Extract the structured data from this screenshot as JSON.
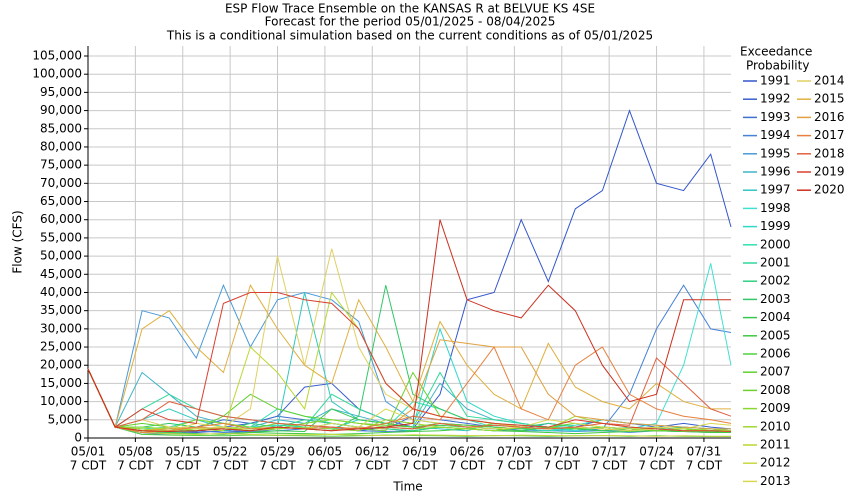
{
  "chart_data": {
    "type": "line",
    "title": "ESP Flow Trace Ensemble on the KANSAS R at BELVUE KS 4SE",
    "subtitle": [
      "Forecast for the period 05/01/2025 - 08/04/2025",
      "This is a conditional simulation based on the current conditions as of 05/01/2025"
    ],
    "x_label": "Time",
    "y_label": "Flow (CFS)",
    "legend_title": [
      "Exceedance",
      "Probability"
    ],
    "grid": true,
    "x": [
      "05/01",
      "05/05",
      "05/09",
      "05/13",
      "05/17",
      "05/21",
      "05/25",
      "05/29",
      "06/02",
      "06/06",
      "06/10",
      "06/14",
      "06/18",
      "06/22",
      "06/26",
      "06/30",
      "07/04",
      "07/08",
      "07/12",
      "07/16",
      "07/20",
      "07/24",
      "07/28",
      "08/01",
      "08/04"
    ],
    "xlim": [
      "05/01",
      "08/04"
    ],
    "xticks": [
      "05/01",
      "05/08",
      "05/15",
      "05/22",
      "05/29",
      "06/05",
      "06/12",
      "06/19",
      "06/26",
      "07/03",
      "07/10",
      "07/17",
      "07/24",
      "07/31"
    ],
    "xtick_sublabel": "7 CDT",
    "ylim": [
      0,
      105000
    ],
    "yticks": [
      0,
      {
        "value": 5000,
        "label": "5,000"
      },
      {
        "value": 10000,
        "label": "10,000"
      },
      {
        "value": 15000,
        "label": "15,000"
      },
      {
        "value": 20000,
        "label": "20,000"
      },
      {
        "value": 25000,
        "label": "25,000"
      },
      {
        "value": 30000,
        "label": "30,000"
      },
      {
        "value": 35000,
        "label": "35,000"
      },
      {
        "value": 40000,
        "label": "40,000"
      },
      {
        "value": 45000,
        "label": "45,000"
      },
      {
        "value": 50000,
        "label": "50,000"
      },
      {
        "value": 55000,
        "label": "55,000"
      },
      {
        "value": 60000,
        "label": "60,000"
      },
      {
        "value": 65000,
        "label": "65,000"
      },
      {
        "value": 70000,
        "label": "70,000"
      },
      {
        "value": 75000,
        "label": "75,000"
      },
      {
        "value": 80000,
        "label": "80,000"
      },
      {
        "value": 85000,
        "label": "85,000"
      },
      {
        "value": 90000,
        "label": "90,000"
      },
      {
        "value": 95000,
        "label": "95,000"
      },
      {
        "value": 100000,
        "label": "100,000"
      },
      {
        "value": 105000,
        "label": "105,000"
      }
    ],
    "series": [
      {
        "name": "1991",
        "color": "#3355cc",
        "values": [
          19000,
          3000,
          1500,
          1200,
          1500,
          2000,
          1800,
          2500,
          3000,
          2500,
          2000,
          3000,
          2500,
          12000,
          38000,
          40000,
          60000,
          43000,
          63000,
          68000,
          90000,
          70000,
          68000,
          78000,
          58000
        ]
      },
      {
        "name": "1992",
        "color": "#3a5fcd",
        "values": [
          19000,
          3000,
          2000,
          1500,
          1800,
          3000,
          4000,
          6000,
          14000,
          15000,
          8000,
          5000,
          3000,
          4000,
          3500,
          3000,
          2500,
          4000,
          3000,
          5000,
          4000,
          3000,
          4000,
          3000,
          2500
        ]
      },
      {
        "name": "1993",
        "color": "#3f6fd0",
        "values": [
          19000,
          3000,
          1000,
          1200,
          3000,
          5000,
          4000,
          6000,
          5000,
          4000,
          3000,
          2500,
          6000,
          5000,
          4000,
          3000,
          2500,
          2000,
          2500,
          3000,
          2500,
          2000,
          3000,
          2500,
          2000
        ]
      },
      {
        "name": "1994",
        "color": "#4682d6",
        "values": [
          19000,
          3000,
          2000,
          1500,
          2000,
          1500,
          1800,
          2000,
          2500,
          3000,
          2000,
          1800,
          2000,
          3000,
          2500,
          2000,
          2500,
          3000,
          2000,
          2500,
          12000,
          30000,
          42000,
          30000,
          29000
        ]
      },
      {
        "name": "1995",
        "color": "#4a9ad8",
        "values": [
          19000,
          3000,
          35000,
          33000,
          22000,
          42000,
          25000,
          38000,
          40000,
          38000,
          32000,
          10000,
          5000,
          4000,
          3000,
          2500,
          2000,
          2000,
          1800,
          2000,
          1500,
          2000,
          1800,
          1500,
          1500
        ]
      },
      {
        "name": "1996",
        "color": "#40b4c8",
        "values": [
          19000,
          3000,
          18000,
          12000,
          6000,
          4000,
          3000,
          5000,
          4000,
          8000,
          6000,
          4000,
          3000,
          15000,
          8000,
          5000,
          4000,
          3000,
          2500,
          2000,
          2000,
          3000,
          2500,
          2000,
          2000
        ]
      },
      {
        "name": "1997",
        "color": "#30c8c0",
        "values": [
          19000,
          3000,
          5000,
          8000,
          5000,
          3000,
          2500,
          3000,
          40000,
          10000,
          5000,
          4000,
          3000,
          2500,
          2000,
          4000,
          3000,
          2500,
          2000,
          3000,
          2500,
          2000,
          2000,
          1800,
          1800
        ]
      },
      {
        "name": "1998",
        "color": "#40e0d0",
        "values": [
          19000,
          3000,
          2000,
          1500,
          2000,
          3000,
          2500,
          3000,
          2500,
          4000,
          3000,
          2500,
          2000,
          3000,
          2500,
          2000,
          3000,
          2500,
          2000,
          3000,
          2500,
          4000,
          20000,
          48000,
          20000
        ]
      },
      {
        "name": "1999",
        "color": "#30d8c8",
        "values": [
          19000,
          3000,
          2500,
          3000,
          5000,
          4000,
          3000,
          3500,
          3000,
          2500,
          5000,
          4000,
          3000,
          30000,
          10000,
          6000,
          4000,
          3000,
          3500,
          5000,
          4000,
          3500,
          3000,
          2500,
          2500
        ]
      },
      {
        "name": "2000",
        "color": "#30e0b0",
        "values": [
          19000,
          3000,
          1500,
          2000,
          2500,
          2000,
          3000,
          8000,
          6000,
          4000,
          3000,
          2500,
          10000,
          8000,
          5000,
          3000,
          2500,
          2000,
          2500,
          3000,
          2500,
          2000,
          2500,
          2000,
          2000
        ]
      },
      {
        "name": "2001",
        "color": "#30d89a",
        "values": [
          19000,
          3000,
          8000,
          12000,
          8000,
          6000,
          5000,
          4000,
          3000,
          12000,
          8000,
          5000,
          4000,
          18000,
          6000,
          5000,
          4000,
          3000,
          2500,
          2000,
          3000,
          2500,
          2000,
          2000,
          1800
        ]
      },
      {
        "name": "2002",
        "color": "#30d080",
        "values": [
          19000,
          3000,
          2000,
          3000,
          2500,
          2000,
          4000,
          3000,
          5000,
          4000,
          3000,
          2500,
          2000,
          3000,
          2500,
          3500,
          3000,
          4000,
          3000,
          2500,
          2000,
          2500,
          3000,
          2500,
          2000
        ]
      },
      {
        "name": "2003",
        "color": "#30c868",
        "values": [
          19000,
          3000,
          3000,
          4000,
          3000,
          2500,
          2000,
          3000,
          2500,
          2000,
          6000,
          42000,
          12000,
          8000,
          5000,
          4000,
          3000,
          2500,
          3000,
          2500,
          2000,
          2500,
          2000,
          2000,
          1800
        ]
      },
      {
        "name": "2004",
        "color": "#38c850",
        "values": [
          19000,
          3000,
          2000,
          1500,
          1200,
          1000,
          1500,
          2000,
          1800,
          8000,
          5000,
          4000,
          3000,
          3500,
          3000,
          2500,
          2000,
          3000,
          2500,
          2000,
          2500,
          2000,
          1800,
          1800,
          1600
        ]
      },
      {
        "name": "2005",
        "color": "#40c840",
        "values": [
          19000,
          3000,
          1500,
          1200,
          1000,
          1200,
          1500,
          1300,
          1200,
          1000,
          1200,
          1500,
          1800,
          2000,
          2500,
          2000,
          1800,
          1500,
          1200,
          1500,
          1800,
          2000,
          1800,
          1500,
          1500
        ]
      },
      {
        "name": "2006",
        "color": "#50d040",
        "values": [
          19000,
          3000,
          1000,
          800,
          700,
          600,
          800,
          700,
          600,
          500,
          600,
          800,
          700,
          600,
          500,
          700,
          600,
          500,
          600,
          700,
          500,
          600,
          500,
          400,
          400
        ]
      },
      {
        "name": "2007",
        "color": "#60d030",
        "values": [
          19000,
          3000,
          4000,
          3000,
          2500,
          6000,
          12000,
          8000,
          6000,
          5000,
          4000,
          3500,
          3000,
          4000,
          3500,
          3000,
          2500,
          3000,
          4000,
          3000,
          2500,
          2000,
          2500,
          2000,
          2000
        ]
      },
      {
        "name": "2008",
        "color": "#70d030",
        "values": [
          19000,
          3000,
          2000,
          2500,
          2000,
          3000,
          2500,
          4000,
          3500,
          3000,
          2500,
          2000,
          18000,
          6000,
          5000,
          4000,
          3500,
          3000,
          2500,
          3000,
          2500,
          2000,
          2500,
          2000,
          2000
        ]
      },
      {
        "name": "2009",
        "color": "#88d830",
        "values": [
          19000,
          3000,
          3000,
          2500,
          5000,
          4000,
          3000,
          2500,
          4000,
          5000,
          4000,
          3000,
          2500,
          3000,
          2500,
          4000,
          3000,
          2500,
          3000,
          2500,
          2000,
          3000,
          2500,
          2000,
          2000
        ]
      },
      {
        "name": "2010",
        "color": "#a0d830",
        "values": [
          19000,
          3000,
          2500,
          2000,
          2500,
          3000,
          2000,
          2500,
          3000,
          2500,
          2000,
          5000,
          4000,
          3000,
          2500,
          2000,
          3000,
          2500,
          6000,
          4000,
          3000,
          2500,
          2000,
          2500,
          2000
        ]
      },
      {
        "name": "2011",
        "color": "#b8d830",
        "values": [
          19000,
          3000,
          2000,
          3000,
          2500,
          2000,
          25000,
          18000,
          8000,
          40000,
          30000,
          15000,
          8000,
          6000,
          5000,
          4000,
          3000,
          2500,
          3000,
          2500,
          2000,
          2500,
          2000,
          2000,
          1800
        ]
      },
      {
        "name": "2012",
        "color": "#c8d840",
        "values": [
          19000,
          3000,
          1500,
          1200,
          1000,
          1200,
          1000,
          800,
          900,
          1000,
          800,
          700,
          900,
          800,
          700,
          600,
          800,
          700,
          600,
          700,
          600,
          500,
          600,
          500,
          500
        ]
      },
      {
        "name": "2013",
        "color": "#d8d850",
        "values": [
          19000,
          3000,
          2000,
          1800,
          4000,
          3000,
          2500,
          3000,
          2500,
          4000,
          3000,
          8000,
          5000,
          4000,
          3000,
          2500,
          3000,
          5000,
          4000,
          3000,
          2500,
          3000,
          2500,
          4000,
          3500
        ]
      },
      {
        "name": "2014",
        "color": "#e0d060",
        "values": [
          19000,
          3000,
          5000,
          3000,
          2500,
          3000,
          8000,
          50000,
          20000,
          52000,
          25000,
          12000,
          8000,
          6000,
          5000,
          4000,
          3000,
          2500,
          3000,
          2500,
          2000,
          2500,
          2000,
          2000,
          1800
        ]
      },
      {
        "name": "2015",
        "color": "#e0b040",
        "values": [
          19000,
          3000,
          30000,
          35000,
          25000,
          18000,
          42000,
          30000,
          20000,
          15000,
          38000,
          25000,
          10000,
          32000,
          20000,
          12000,
          8000,
          26000,
          14000,
          10000,
          8000,
          15000,
          10000,
          8000,
          8000
        ]
      },
      {
        "name": "2016",
        "color": "#e0a040",
        "values": [
          19000,
          3000,
          2000,
          2500,
          3000,
          2500,
          2000,
          3000,
          2500,
          2000,
          3000,
          2500,
          8000,
          27000,
          26000,
          25000,
          25000,
          12000,
          6000,
          5000,
          4000,
          3500,
          3000,
          2500,
          2500
        ]
      },
      {
        "name": "2017",
        "color": "#e88040",
        "values": [
          19000,
          3000,
          1500,
          2000,
          3000,
          4000,
          2500,
          3000,
          2500,
          3000,
          2500,
          4000,
          6000,
          5000,
          15000,
          25000,
          8000,
          5000,
          20000,
          25000,
          12000,
          8000,
          6000,
          5000,
          4000
        ]
      },
      {
        "name": "2018",
        "color": "#e06040",
        "values": [
          19000,
          3000,
          5000,
          10000,
          8000,
          6000,
          5000,
          4000,
          3500,
          3000,
          2500,
          3000,
          2500,
          4000,
          3000,
          3500,
          3000,
          2500,
          3000,
          4000,
          3500,
          22000,
          15000,
          8000,
          6000
        ]
      },
      {
        "name": "2019",
        "color": "#d84030",
        "values": [
          19000,
          3000,
          8000,
          5000,
          4000,
          37000,
          40000,
          40000,
          38000,
          37000,
          30000,
          15000,
          8000,
          6000,
          5000,
          4000,
          3500,
          3000,
          5000,
          4000,
          3000,
          2500,
          2000,
          2000,
          1800
        ]
      },
      {
        "name": "2020",
        "color": "#cc3020",
        "values": [
          19000,
          3000,
          2000,
          1800,
          2000,
          2500,
          2000,
          3000,
          2500,
          2000,
          2500,
          3000,
          4000,
          60000,
          38000,
          35000,
          33000,
          42000,
          35000,
          20000,
          10000,
          12000,
          38000,
          38000,
          38000
        ]
      }
    ]
  }
}
